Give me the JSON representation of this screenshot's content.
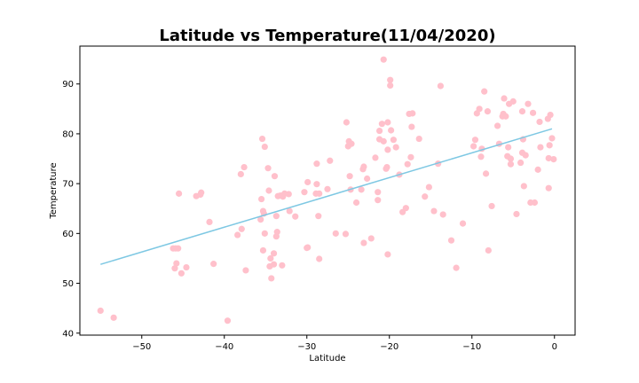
{
  "chart_data": {
    "type": "scatter",
    "title": "Latitude vs Temperature(11/04/2020)",
    "xlabel": "Latitude",
    "ylabel": "Temperature",
    "xlim": [
      -57.5,
      2.5
    ],
    "ylim": [
      39.6,
      97.6
    ],
    "xticks": [
      -50,
      -40,
      -30,
      -20,
      -10,
      0
    ],
    "xtick_labels": [
      "−50",
      "−40",
      "−30",
      "−20",
      "−10",
      "0"
    ],
    "yticks": [
      40,
      50,
      60,
      70,
      80,
      90
    ],
    "ytick_labels": [
      "40",
      "50",
      "60",
      "70",
      "80",
      "90"
    ],
    "grid": false,
    "legend": "none",
    "marker_color": "#ffc0cb",
    "line_color": "#7ec8e3",
    "regression_line": {
      "x": [
        -55.0,
        -0.3
      ],
      "y": [
        53.8,
        81.0
      ]
    },
    "points": [
      [
        -55.0,
        44.5
      ],
      [
        -53.4,
        43.1
      ],
      [
        -45.9,
        57.0
      ],
      [
        -46.2,
        57.0
      ],
      [
        -45.6,
        57.0
      ],
      [
        -46.0,
        53.0
      ],
      [
        -45.8,
        54.0
      ],
      [
        -45.2,
        52.0
      ],
      [
        -44.6,
        53.2
      ],
      [
        -45.5,
        68.0
      ],
      [
        -43.4,
        67.5
      ],
      [
        -42.9,
        67.8
      ],
      [
        -42.8,
        68.2
      ],
      [
        -41.8,
        62.3
      ],
      [
        -41.3,
        53.9
      ],
      [
        -39.6,
        42.5
      ],
      [
        -38.4,
        59.7
      ],
      [
        -37.9,
        60.9
      ],
      [
        -38.0,
        71.9
      ],
      [
        -37.6,
        73.3
      ],
      [
        -37.4,
        52.6
      ],
      [
        -35.6,
        62.8
      ],
      [
        -35.5,
        66.9
      ],
      [
        -35.3,
        64.5
      ],
      [
        -35.2,
        64.0
      ],
      [
        -35.4,
        79.0
      ],
      [
        -35.1,
        77.4
      ],
      [
        -35.1,
        60.0
      ],
      [
        -35.3,
        56.6
      ],
      [
        -34.7,
        73.1
      ],
      [
        -34.6,
        68.6
      ],
      [
        -34.5,
        53.4
      ],
      [
        -34.4,
        55.0
      ],
      [
        -34.3,
        51.0
      ],
      [
        -34.0,
        56.0
      ],
      [
        -34.0,
        53.8
      ],
      [
        -33.9,
        71.5
      ],
      [
        -33.7,
        59.4
      ],
      [
        -33.7,
        63.5
      ],
      [
        -33.6,
        60.3
      ],
      [
        -33.5,
        67.5
      ],
      [
        -33.2,
        67.6
      ],
      [
        -33.0,
        53.6
      ],
      [
        -32.9,
        67.4
      ],
      [
        -32.7,
        68.0
      ],
      [
        -32.2,
        67.9
      ],
      [
        -32.1,
        64.5
      ],
      [
        -31.4,
        63.4
      ],
      [
        -30.3,
        68.3
      ],
      [
        -30.0,
        57.1
      ],
      [
        -29.9,
        70.3
      ],
      [
        -29.9,
        57.2
      ],
      [
        -28.9,
        68.0
      ],
      [
        -28.8,
        69.9
      ],
      [
        -28.8,
        74.0
      ],
      [
        -28.6,
        63.5
      ],
      [
        -28.5,
        68.0
      ],
      [
        -28.5,
        54.9
      ],
      [
        -27.5,
        68.9
      ],
      [
        -27.2,
        74.6
      ],
      [
        -26.5,
        60.0
      ],
      [
        -25.3,
        59.9
      ],
      [
        -25.2,
        82.3
      ],
      [
        -25.0,
        77.5
      ],
      [
        -24.9,
        78.5
      ],
      [
        -24.8,
        71.5
      ],
      [
        -24.6,
        78.0
      ],
      [
        -24.7,
        68.8
      ],
      [
        -24.0,
        66.2
      ],
      [
        -23.4,
        68.8
      ],
      [
        -23.2,
        72.9
      ],
      [
        -23.1,
        73.4
      ],
      [
        -23.1,
        58.1
      ],
      [
        -22.7,
        71.0
      ],
      [
        -22.2,
        59.0
      ],
      [
        -21.7,
        75.2
      ],
      [
        -21.4,
        68.3
      ],
      [
        -21.4,
        66.7
      ],
      [
        -21.2,
        80.6
      ],
      [
        -21.2,
        78.9
      ],
      [
        -20.9,
        82.0
      ],
      [
        -20.7,
        94.9
      ],
      [
        -20.7,
        78.5
      ],
      [
        -20.4,
        73.0
      ],
      [
        -20.3,
        73.3
      ],
      [
        -20.2,
        55.8
      ],
      [
        -20.2,
        82.3
      ],
      [
        -20.2,
        76.8
      ],
      [
        -19.9,
        90.8
      ],
      [
        -19.9,
        89.7
      ],
      [
        -19.8,
        80.7
      ],
      [
        -19.5,
        78.8
      ],
      [
        -19.2,
        77.3
      ],
      [
        -18.8,
        71.8
      ],
      [
        -18.4,
        64.3
      ],
      [
        -18.0,
        65.1
      ],
      [
        -17.8,
        73.9
      ],
      [
        -17.6,
        84.0
      ],
      [
        -17.2,
        84.1
      ],
      [
        -17.3,
        81.4
      ],
      [
        -17.4,
        75.3
      ],
      [
        -16.4,
        79.0
      ],
      [
        -15.7,
        67.4
      ],
      [
        -15.2,
        69.3
      ],
      [
        -14.6,
        64.5
      ],
      [
        -14.1,
        74.0
      ],
      [
        -13.8,
        89.6
      ],
      [
        -13.5,
        63.8
      ],
      [
        -12.5,
        58.6
      ],
      [
        -11.9,
        53.1
      ],
      [
        -11.1,
        62.0
      ],
      [
        -9.8,
        77.5
      ],
      [
        -9.6,
        78.8
      ],
      [
        -9.4,
        84.1
      ],
      [
        -9.1,
        85.0
      ],
      [
        -8.9,
        75.4
      ],
      [
        -8.8,
        77.0
      ],
      [
        -8.5,
        88.5
      ],
      [
        -8.3,
        72.0
      ],
      [
        -8.1,
        84.5
      ],
      [
        -8.0,
        56.6
      ],
      [
        -7.6,
        65.5
      ],
      [
        -6.9,
        81.6
      ],
      [
        -6.7,
        78.0
      ],
      [
        -6.3,
        83.5
      ],
      [
        -6.2,
        84.0
      ],
      [
        -6.1,
        87.1
      ],
      [
        -5.9,
        83.5
      ],
      [
        -5.7,
        75.5
      ],
      [
        -5.6,
        77.3
      ],
      [
        -5.5,
        86.0
      ],
      [
        -5.3,
        75.0
      ],
      [
        -5.3,
        73.9
      ],
      [
        -5.0,
        86.5
      ],
      [
        -4.6,
        63.9
      ],
      [
        -4.1,
        74.2
      ],
      [
        -3.9,
        84.5
      ],
      [
        -3.9,
        76.2
      ],
      [
        -3.8,
        78.9
      ],
      [
        -3.7,
        69.5
      ],
      [
        -3.5,
        75.7
      ],
      [
        -3.2,
        86.0
      ],
      [
        -2.9,
        66.2
      ],
      [
        -2.6,
        84.2
      ],
      [
        -2.4,
        66.2
      ],
      [
        -2.0,
        72.8
      ],
      [
        -1.8,
        82.4
      ],
      [
        -1.7,
        77.3
      ],
      [
        -0.8,
        83.0
      ],
      [
        -0.7,
        75.1
      ],
      [
        -0.7,
        69.1
      ],
      [
        -0.6,
        77.7
      ],
      [
        -0.5,
        83.8
      ],
      [
        -0.3,
        79.1
      ],
      [
        -0.1,
        74.9
      ]
    ]
  }
}
